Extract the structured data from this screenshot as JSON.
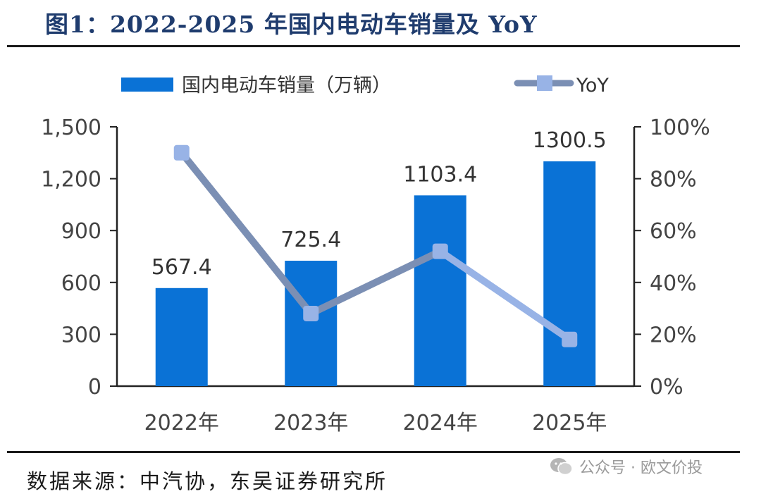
{
  "title": "图1：2022-2025 年国内电动车销量及 YoY",
  "source": "数据来源：中汽协，东吴证券研究所",
  "watermark": "公众号 · 欧文价投",
  "colors": {
    "bar": "#0a72d6",
    "line": "#7b8fb4",
    "marker": "#98b3e6",
    "axis": "#222222",
    "title": "#1f3c6e"
  },
  "chart_data": {
    "type": "bar",
    "categories": [
      "2022年",
      "2023年",
      "2024年",
      "2025年"
    ],
    "series": [
      {
        "name": "国内电动车销量（万辆）",
        "type": "bar",
        "axis": "left",
        "values": [
          567.4,
          725.4,
          1103.4,
          1300.5
        ],
        "labels": [
          "567.4",
          "725.4",
          "1103.4",
          "1300.5"
        ]
      },
      {
        "name": "YoY",
        "type": "line",
        "axis": "right",
        "values": [
          0.9,
          0.28,
          0.52,
          0.18
        ]
      }
    ],
    "y_left": {
      "lim": [
        0,
        1500
      ],
      "ticks": [
        0,
        300,
        600,
        900,
        1200,
        1500
      ],
      "tick_labels": [
        "0",
        "300",
        "600",
        "900",
        "1,200",
        "1,500"
      ]
    },
    "y_right": {
      "lim": [
        0,
        1
      ],
      "ticks": [
        0,
        0.2,
        0.4,
        0.6,
        0.8,
        1.0
      ],
      "tick_labels": [
        "0%",
        "20%",
        "40%",
        "60%",
        "80%",
        "100%"
      ]
    },
    "legend": "top",
    "grid": false
  }
}
